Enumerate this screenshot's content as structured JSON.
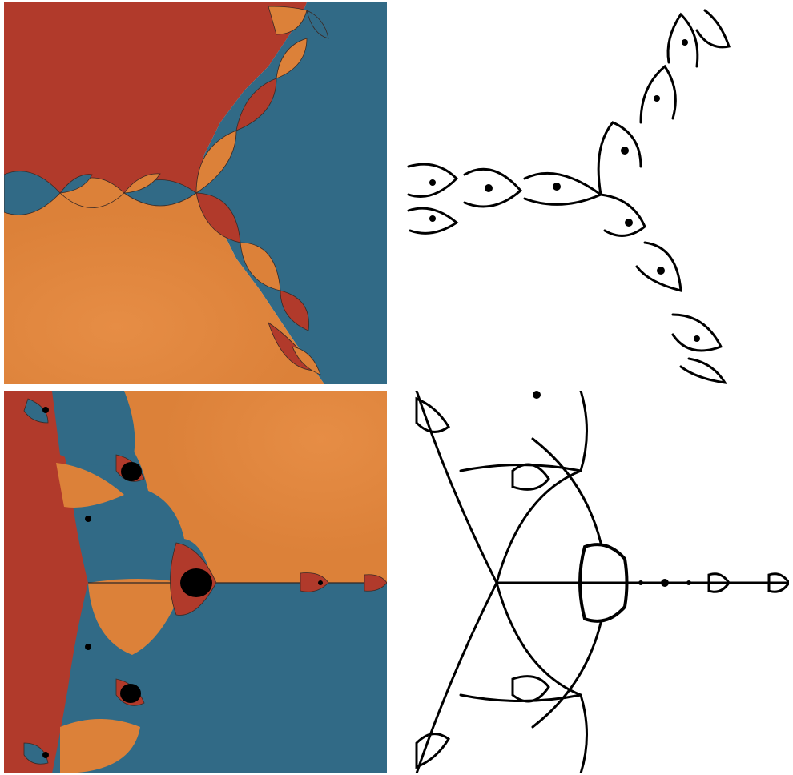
{
  "figure": {
    "panels": [
      {
        "name": "basin-plot-top-left",
        "style": "colored-basins"
      },
      {
        "name": "julia-set-top-right",
        "style": "black-on-white"
      },
      {
        "name": "basin-plot-bottom-left",
        "style": "colored-basins"
      },
      {
        "name": "julia-set-bottom-right",
        "style": "black-on-white"
      }
    ],
    "colors": {
      "red_basin": "#b13a2b",
      "blue_basin": "#316a86",
      "orange_basin": "#e0843d",
      "fractal_ink": "#000000",
      "background": "#ffffff"
    }
  }
}
